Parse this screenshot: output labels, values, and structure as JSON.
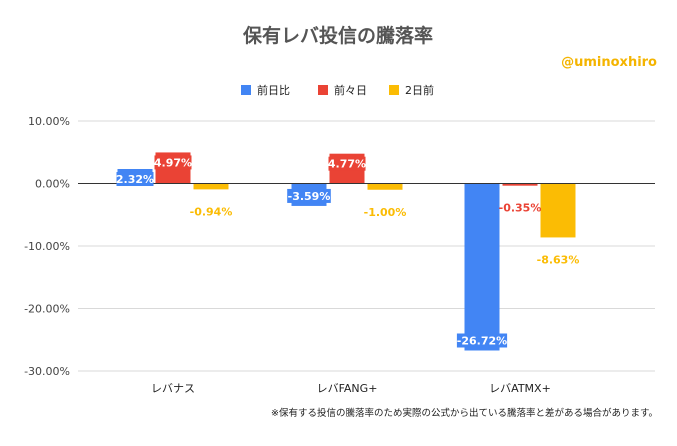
{
  "chart_data": {
    "type": "bar",
    "title": "保有レバ投信の騰落率",
    "credit": "@uminoxhiro",
    "categories": [
      "レバナス",
      "レバFANG+",
      "レバATMX+"
    ],
    "series": [
      {
        "name": "前日比",
        "color": "#4285f4",
        "values": [
          2.32,
          -3.59,
          -26.72
        ],
        "labels": [
          "2.32%",
          "-3.59%",
          "-26.72%"
        ]
      },
      {
        "name": "前々日",
        "color": "#ea4335",
        "values": [
          4.97,
          4.77,
          -0.35
        ],
        "labels": [
          "4.97%",
          "4.77%",
          "-0.35%"
        ]
      },
      {
        "name": "2日前",
        "color": "#fbbc04",
        "values": [
          -0.94,
          -1.0,
          -8.63
        ],
        "labels": [
          "-0.94%",
          "-1.00%",
          "-8.63%"
        ]
      }
    ],
    "y_ticks": [
      10,
      0,
      -10,
      -20,
      -30
    ],
    "y_tick_labels": [
      "10.00%",
      "0.00%",
      "-10.00%",
      "-20.00%",
      "-30.00%"
    ],
    "ylim": [
      -30,
      10
    ],
    "grid": true,
    "legend_position": "top",
    "footnote": "※保有する投信の騰落率のため実際の公式から出ている騰落率と差がある場合があります。"
  }
}
